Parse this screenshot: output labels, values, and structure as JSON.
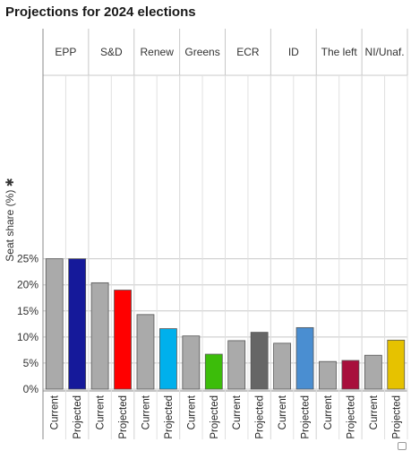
{
  "chart_data": {
    "type": "bar",
    "title": "Projections for 2024 elections",
    "ylabel": "Seat share (%) ✱",
    "ylim": [
      0,
      30
    ],
    "y_ticks": [
      0,
      5,
      10,
      15,
      20,
      25
    ],
    "y_tick_labels": [
      "0%",
      "5%",
      "10%",
      "15%",
      "20%",
      "25%"
    ],
    "grid": true,
    "categories": [
      "EPP",
      "S&D",
      "Renew",
      "Greens",
      "ECR",
      "ID",
      "The left",
      "NI/Unaf."
    ],
    "bar_labels": [
      "Current",
      "Projected"
    ],
    "series": [
      {
        "name": "Current",
        "values": [
          25.0,
          20.4,
          14.3,
          10.2,
          9.3,
          8.8,
          5.3,
          6.5
        ],
        "colors": [
          "#aaaaaa",
          "#aaaaaa",
          "#aaaaaa",
          "#aaaaaa",
          "#aaaaaa",
          "#aaaaaa",
          "#aaaaaa",
          "#aaaaaa"
        ]
      },
      {
        "name": "Projected",
        "values": [
          25.0,
          19.0,
          11.6,
          6.7,
          10.9,
          11.8,
          5.5,
          9.4
        ],
        "colors": [
          "#15199a",
          "#ff0000",
          "#00b0ec",
          "#3cbd0a",
          "#666666",
          "#4a8ed1",
          "#a80f3c",
          "#e6c200"
        ]
      }
    ]
  }
}
